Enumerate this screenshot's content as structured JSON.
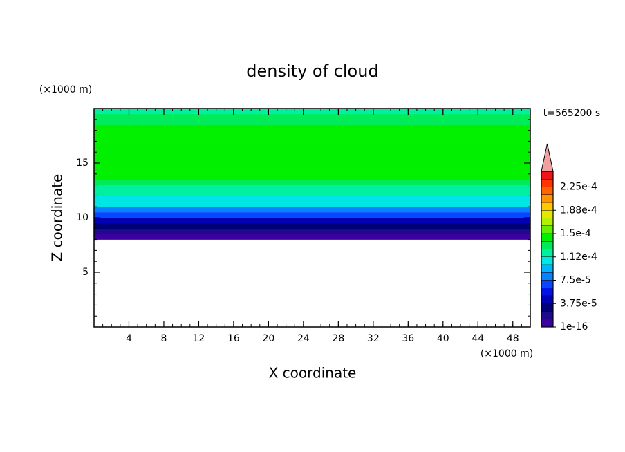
{
  "chart_data": {
    "type": "contour",
    "title": "density of cloud",
    "x_label": "X coordinate",
    "y_label": "Z coordinate",
    "x_unit": "(×1000 m)",
    "y_unit": "(×1000 m)",
    "annotation": "t=565200 s",
    "xlim": [
      0,
      50
    ],
    "xticks": [
      4,
      8,
      12,
      16,
      20,
      24,
      28,
      32,
      36,
      40,
      44,
      48
    ],
    "ylim": [
      0,
      20
    ],
    "yticks": [
      5,
      10,
      15
    ],
    "z": [
      8,
      8.5,
      9,
      9.5,
      10,
      10.5,
      11,
      11.5,
      12,
      12.5,
      13,
      13.5,
      14,
      14.5,
      15,
      15.5,
      16,
      16.5,
      17,
      17.5,
      18,
      18.5,
      19,
      19.5
    ],
    "values": [
      6e-06,
      1.8e-05,
      3e-05,
      4.5e-05,
      6.8e-05,
      8.5e-05,
      0.0001,
      0.000108,
      0.000115,
      0.00012,
      0.00013,
      0.000142,
      0.000142,
      0.000142,
      0.000142,
      0.000142,
      0.000142,
      0.000142,
      0.000142,
      0.000142,
      0.00014,
      0.00013,
      0.000128,
      0.00012
    ],
    "colorbar": {
      "levels": [
        1e-16,
        1.25e-05,
        2.5e-05,
        3.75e-05,
        5e-05,
        6.25e-05,
        7.5e-05,
        8.75e-05,
        0.0001,
        0.0001125,
        0.000125,
        0.0001375,
        0.00015,
        0.0001625,
        0.000175,
        0.0001875,
        0.0002,
        0.0002125,
        0.000225,
        0.0002375,
        0.00025
      ],
      "colors": [
        "#3c00a0",
        "#1e0a8c",
        "#000078",
        "#0000b4",
        "#0014e6",
        "#0a46ff",
        "#0a82ff",
        "#00b4ff",
        "#00e6e6",
        "#00f0a0",
        "#00eb5a",
        "#00f000",
        "#64f000",
        "#b4f000",
        "#e6e600",
        "#ffc800",
        "#ff9600",
        "#ff6400",
        "#ff3200",
        "#f01414"
      ],
      "extend_color": "#f0a0a0",
      "ticks": [
        {
          "value": 1e-16,
          "label": "1e-16"
        },
        {
          "value": 3.75e-05,
          "label": "3.75e-5"
        },
        {
          "value": 7.5e-05,
          "label": "7.5e-5"
        },
        {
          "value": 0.0001125,
          "label": "1.12e-4"
        },
        {
          "value": 0.00015,
          "label": "1.5e-4"
        },
        {
          "value": 0.0001875,
          "label": "1.88e-4"
        },
        {
          "value": 0.000225,
          "label": "2.25e-4"
        }
      ]
    }
  }
}
